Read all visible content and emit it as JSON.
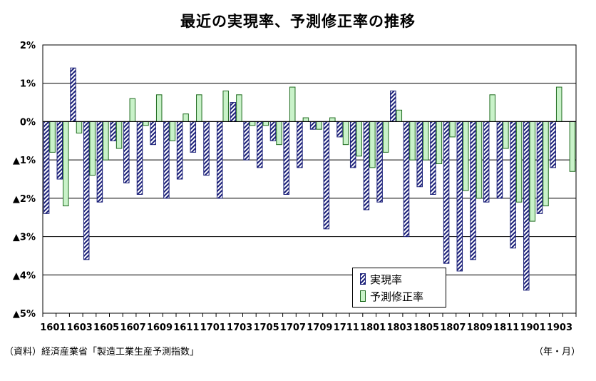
{
  "chart_data": {
    "type": "bar",
    "title": "最近の実現率、予測修正率の推移",
    "xlabel": "",
    "ylabel": "",
    "ylim": [
      -5,
      2
    ],
    "y_ticks": [
      2,
      1,
      0,
      -1,
      -2,
      -3,
      -4,
      -5
    ],
    "y_tick_labels": [
      "2%",
      "1%",
      "0%",
      "▲1%",
      "▲2%",
      "▲3%",
      "▲4%",
      "▲5%"
    ],
    "x_tick_labels": [
      "1601",
      "1603",
      "1605",
      "1607",
      "1609",
      "1611",
      "1701",
      "1703",
      "1705",
      "1707",
      "1709",
      "1711",
      "1801",
      "1803",
      "1805",
      "1807",
      "1809",
      "1811",
      "1901",
      "1903"
    ],
    "grid": true,
    "legend_position": "bottom-right",
    "categories": [
      "1601",
      "1602",
      "1603",
      "1604",
      "1605",
      "1606",
      "1607",
      "1608",
      "1609",
      "1610",
      "1611",
      "1612",
      "1701",
      "1702",
      "1703",
      "1704",
      "1705",
      "1706",
      "1707",
      "1708",
      "1709",
      "1710",
      "1711",
      "1712",
      "1801",
      "1802",
      "1803",
      "1804",
      "1805",
      "1806",
      "1807",
      "1808",
      "1809",
      "1810",
      "1811",
      "1812",
      "1901",
      "1902",
      "1903",
      "1904"
    ],
    "series": [
      {
        "name": "実現率",
        "values": [
          -2.4,
          -1.5,
          1.4,
          -3.6,
          -2.1,
          -0.5,
          -1.6,
          -1.9,
          -0.6,
          -2.0,
          -1.5,
          -0.8,
          -1.4,
          -2.0,
          0.5,
          -1.0,
          -1.2,
          -0.5,
          -1.9,
          -1.2,
          -0.2,
          -2.8,
          -0.4,
          -1.2,
          -2.3,
          -2.1,
          0.8,
          -3.0,
          -1.7,
          -1.9,
          -3.7,
          -3.9,
          -3.6,
          -2.1,
          -2.0,
          -3.3,
          -4.4,
          -2.4,
          -1.2,
          null
        ]
      },
      {
        "name": "予測修正率",
        "values": [
          -0.8,
          -2.2,
          -0.3,
          -1.4,
          -1.0,
          -0.7,
          0.6,
          -0.1,
          0.7,
          -0.5,
          0.2,
          0.7,
          0.0,
          0.8,
          0.7,
          -0.1,
          -0.1,
          -0.6,
          0.9,
          0.1,
          -0.2,
          0.1,
          -0.6,
          -0.9,
          -1.2,
          -0.8,
          0.3,
          -1.0,
          -1.0,
          -1.1,
          -0.4,
          -1.8,
          -2.0,
          0.7,
          -0.7,
          -2.1,
          -2.6,
          -2.2,
          0.9,
          -1.3
        ]
      }
    ],
    "colors": {
      "series0": "#1a1f78",
      "series1_fill": "#c9f2c9",
      "series1_stroke": "#1f6b1f"
    }
  },
  "footer": {
    "source": "（資料）経済産業省「製造工業生産予測指数」",
    "unit": "（年・月）"
  }
}
